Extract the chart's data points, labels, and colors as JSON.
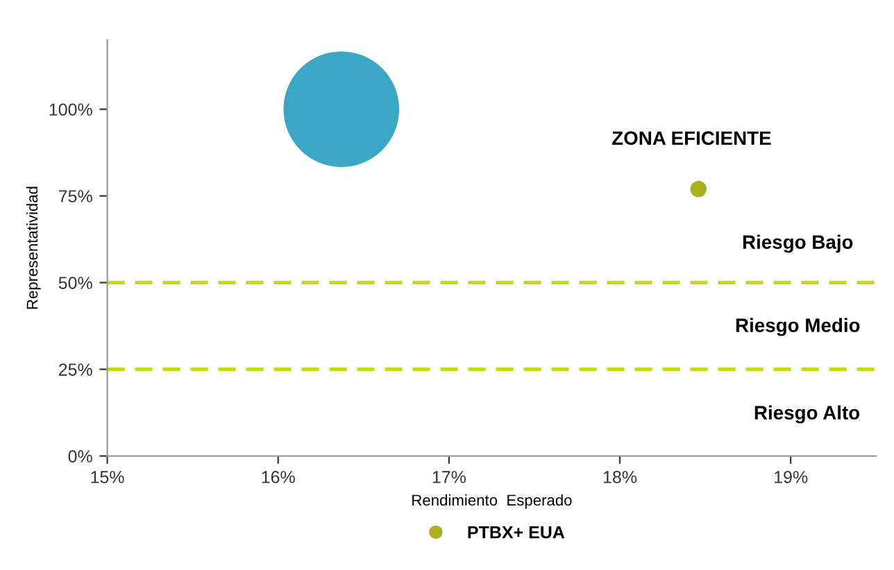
{
  "chart_data": {
    "type": "bubble",
    "xlabel": "Rendimiento  Esperado",
    "ylabel": "Representatividad",
    "series": [
      {
        "color": "#3aa7c4",
        "x": [
          16.37
        ],
        "values": [
          100
        ],
        "sizes": [
          1
        ]
      },
      {
        "name": "PTBX+ EUA",
        "color": "#a8b020",
        "x": [
          18.46
        ],
        "values": [
          77
        ],
        "sizes": [
          0.02
        ]
      }
    ],
    "xlim": [
      15,
      19.5
    ],
    "ylim": [
      0,
      120
    ],
    "xticks": [
      {
        "value": 15,
        "label": "15%"
      },
      {
        "value": 16,
        "label": "16%"
      },
      {
        "value": 17,
        "label": "17%"
      },
      {
        "value": 18,
        "label": "18%"
      },
      {
        "value": 19,
        "label": "19%"
      }
    ],
    "yticks": [
      {
        "value": 0,
        "label": "0%"
      },
      {
        "value": 25,
        "label": "25%"
      },
      {
        "value": 50,
        "label": "50%"
      },
      {
        "value": 75,
        "label": "75%"
      },
      {
        "value": 100,
        "label": "100%"
      }
    ],
    "ref_lines": [
      {
        "axis": "y",
        "value": 50,
        "color": "#c8dc00",
        "line_style": "dashed"
      },
      {
        "axis": "y",
        "value": 25,
        "color": "#c8dc00",
        "line_style": "dashed"
      }
    ],
    "annotations": [
      "ZONA EFICIENTE",
      "Riesgo Bajo",
      "Riesgo Medio",
      "Riesgo Alto"
    ],
    "grid": false,
    "legend": "bottom"
  }
}
